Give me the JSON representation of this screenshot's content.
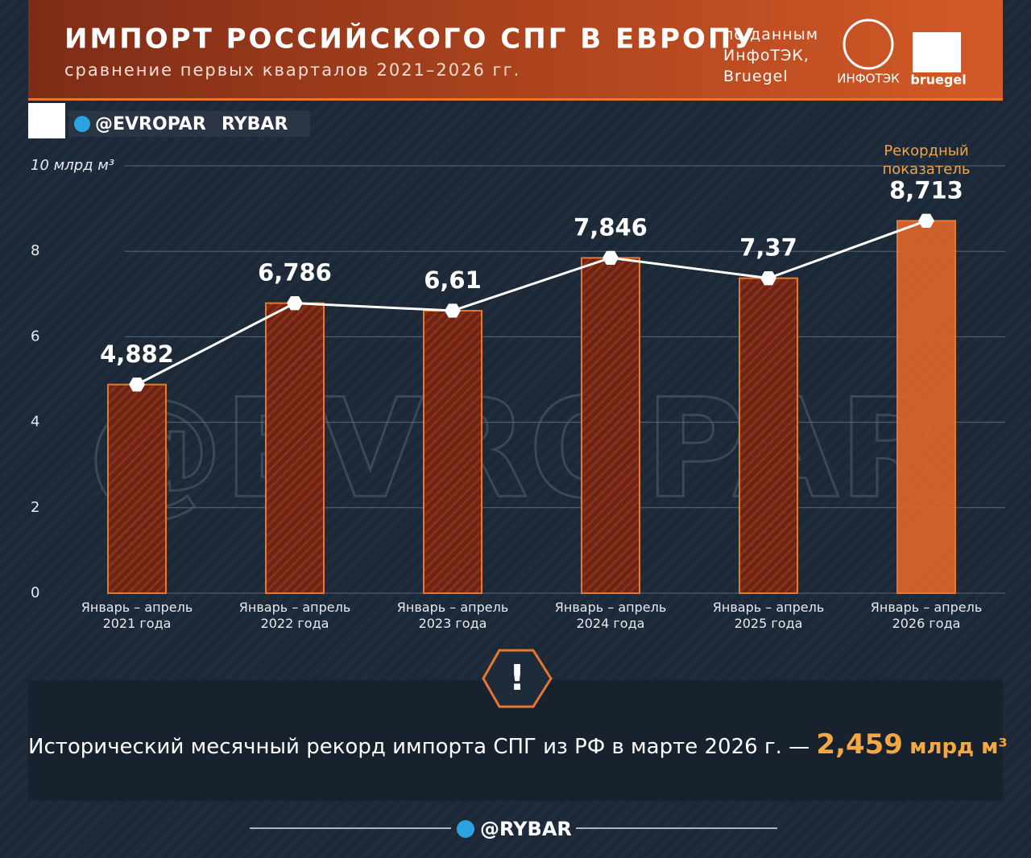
{
  "header": {
    "title": "ИМПОРТ РОССИЙСКОГО СПГ В ЕВРОПУ",
    "subtitle": "сравнение первых кварталов 2021–2026 гг.",
    "source": "по данным\nИнфоТЭК,\nBruegel",
    "logos": [
      "ИНФОТЭК",
      "bruegel"
    ]
  },
  "channels": {
    "handle": "@EVROPAR",
    "brand": "RYBAR",
    "watermark": "@EVROPAR"
  },
  "chart_data": {
    "type": "bar_line",
    "categories": [
      "Январь – апрель\n2021 года",
      "Январь – апрель\n2022 года",
      "Январь – апрель\n2023 года",
      "Январь – апрель\n2024 года",
      "Январь – апрель\n2025 года",
      "Январь – апрель\n2026 года"
    ],
    "values": [
      4.882,
      6.786,
      6.61,
      7.846,
      7.37,
      8.713
    ],
    "value_labels": [
      "4,882",
      "6,786",
      "6,61",
      "7,846",
      "7,37",
      "8,713"
    ],
    "color": "#7a2816",
    "highlight_color": "#e0662c",
    "bar_stroke": "#e8762f",
    "line_color": "#ffffff",
    "ylim": [
      0,
      10
    ],
    "yticks": [
      0,
      2,
      4,
      6,
      8,
      {
        "value": 10,
        "label": "10 млрд м³"
      }
    ],
    "grid": true,
    "annotation": "Рекордный\nпоказатель"
  },
  "note": {
    "text": "Исторический месячный рекорд импорта СПГ из РФ в марте 2026 г. —",
    "value": "2,459",
    "unit": "млрд м³"
  },
  "footer": "@RYBAR"
}
